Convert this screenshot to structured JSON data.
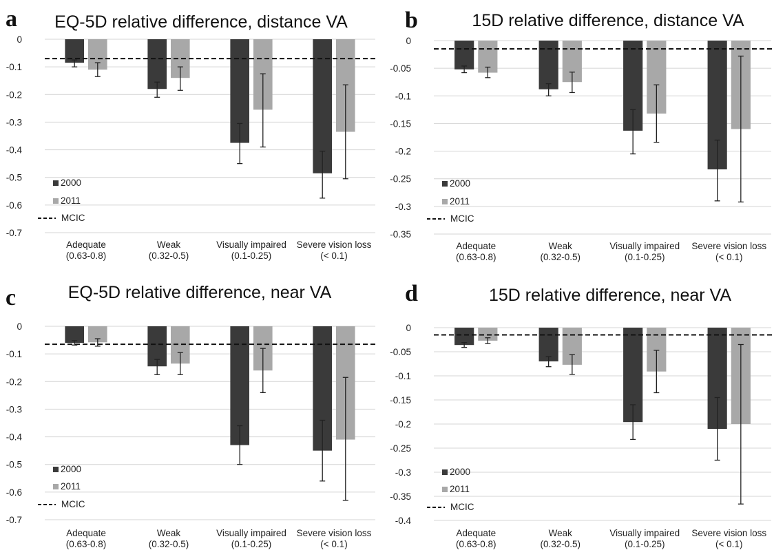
{
  "colors": {
    "series_2000": "#3a3a3a",
    "series_2011": "#a8a8a8",
    "mcic_line": "#111111",
    "grid": "#d4d4d4"
  },
  "chart_data": [
    {
      "panel": "a",
      "type": "bar",
      "title": "EQ-5D relative difference, distance VA",
      "categories": [
        [
          "Adequate",
          "(0.63-0.8)"
        ],
        [
          "Weak",
          "(0.32-0.5)"
        ],
        [
          "Visually impaired",
          "(0.1-0.25)"
        ],
        [
          "Severe vision loss",
          "(< 0.1)"
        ]
      ],
      "series": [
        {
          "name": "2000",
          "values": [
            -0.085,
            -0.18,
            -0.375,
            -0.485
          ],
          "err_low": [
            -0.1,
            -0.21,
            -0.45,
            -0.575
          ],
          "err_high": [
            -0.075,
            -0.155,
            -0.305,
            -0.405
          ]
        },
        {
          "name": "2011",
          "values": [
            -0.11,
            -0.14,
            -0.255,
            -0.335
          ],
          "err_low": [
            -0.135,
            -0.185,
            -0.39,
            -0.505
          ],
          "err_high": [
            -0.085,
            -0.1,
            -0.125,
            -0.165
          ]
        }
      ],
      "mcic": -0.07,
      "mcic_label": "MCIC",
      "ylim": [
        -0.7,
        0
      ],
      "yticks": [
        0,
        -0.1,
        -0.2,
        -0.3,
        -0.4,
        -0.5,
        -0.6,
        -0.7
      ],
      "ytick_labels": [
        "0",
        "-0.1",
        "-0.2",
        "-0.3",
        "-0.4",
        "-0.5",
        "-0.6",
        "-0.7"
      ],
      "legend": "lower-left",
      "grid": true
    },
    {
      "panel": "b",
      "type": "bar",
      "title": "15D relative difference, distance VA",
      "categories": [
        [
          "Adequate",
          "(0.63-0.8)"
        ],
        [
          "Weak",
          "(0.32-0.5)"
        ],
        [
          "Visually impaired",
          "(0.1-0.25)"
        ],
        [
          "Severe vision loss",
          "(< 0.1)"
        ]
      ],
      "series": [
        {
          "name": "2000",
          "values": [
            -0.052,
            -0.088,
            -0.163,
            -0.233
          ],
          "err_low": [
            -0.058,
            -0.1,
            -0.205,
            -0.29
          ],
          "err_high": [
            -0.046,
            -0.078,
            -0.125,
            -0.18
          ]
        },
        {
          "name": "2011",
          "values": [
            -0.058,
            -0.075,
            -0.132,
            -0.16
          ],
          "err_low": [
            -0.067,
            -0.094,
            -0.184,
            -0.292
          ],
          "err_high": [
            -0.048,
            -0.057,
            -0.08,
            -0.028
          ]
        }
      ],
      "mcic": -0.015,
      "mcic_label": "MCIC",
      "ylim": [
        -0.35,
        0
      ],
      "yticks": [
        0,
        -0.05,
        -0.1,
        -0.15,
        -0.2,
        -0.25,
        -0.3,
        -0.35
      ],
      "ytick_labels": [
        "0",
        "-0.05",
        "-0.1",
        "-0.15",
        "-0.2",
        "-0.25",
        "-0.3",
        "-0.35"
      ],
      "legend": "lower-left",
      "grid": true
    },
    {
      "panel": "c",
      "type": "bar",
      "title": "EQ-5D relative difference, near VA",
      "categories": [
        [
          "Adequate",
          "(0.63-0.8)"
        ],
        [
          "Weak",
          "(0.32-0.5)"
        ],
        [
          "Visually impaired",
          "(0.1-0.25)"
        ],
        [
          "Severe vision loss",
          "(< 0.1)"
        ]
      ],
      "series": [
        {
          "name": "2000",
          "values": [
            -0.06,
            -0.145,
            -0.43,
            -0.45
          ],
          "err_low": [
            -0.068,
            -0.175,
            -0.5,
            -0.56
          ],
          "err_high": [
            -0.052,
            -0.12,
            -0.36,
            -0.34
          ]
        },
        {
          "name": "2011",
          "values": [
            -0.058,
            -0.135,
            -0.16,
            -0.41
          ],
          "err_low": [
            -0.072,
            -0.175,
            -0.24,
            -0.63
          ],
          "err_high": [
            -0.045,
            -0.095,
            -0.08,
            -0.185
          ]
        }
      ],
      "mcic": -0.065,
      "mcic_label": "MCIC",
      "ylim": [
        -0.7,
        0
      ],
      "yticks": [
        0,
        -0.1,
        -0.2,
        -0.3,
        -0.4,
        -0.5,
        -0.6,
        -0.7
      ],
      "ytick_labels": [
        "0",
        "-0.1",
        "-0.2",
        "-0.3",
        "-0.4",
        "-0.5",
        "-0.6",
        "-0.7"
      ],
      "legend": "lower-left",
      "grid": true
    },
    {
      "panel": "d",
      "type": "bar",
      "title": "15D relative difference, near VA",
      "categories": [
        [
          "Adequate",
          "(0.63-0.8)"
        ],
        [
          "Weak",
          "(0.32-0.5)"
        ],
        [
          "Visually impaired",
          "(0.1-0.25)"
        ],
        [
          "Severe vision loss",
          "(< 0.1)"
        ]
      ],
      "series": [
        {
          "name": "2000",
          "values": [
            -0.036,
            -0.07,
            -0.196,
            -0.21
          ],
          "err_low": [
            -0.041,
            -0.081,
            -0.232,
            -0.275
          ],
          "err_high": [
            -0.031,
            -0.06,
            -0.16,
            -0.145
          ]
        },
        {
          "name": "2011",
          "values": [
            -0.027,
            -0.077,
            -0.091,
            -0.2
          ],
          "err_low": [
            -0.033,
            -0.097,
            -0.135,
            -0.366
          ],
          "err_high": [
            -0.021,
            -0.056,
            -0.047,
            -0.035
          ]
        }
      ],
      "mcic": -0.015,
      "mcic_label": "MCIC",
      "ylim": [
        -0.4,
        0
      ],
      "yticks": [
        0,
        -0.05,
        -0.1,
        -0.15,
        -0.2,
        -0.25,
        -0.3,
        -0.35,
        -0.4
      ],
      "ytick_labels": [
        "0",
        "-0.05",
        "-0.1",
        "-0.15",
        "-0.2",
        "-0.25",
        "-0.3",
        "-0.35",
        "-0.4"
      ],
      "legend": "lower-left",
      "grid": true
    }
  ]
}
